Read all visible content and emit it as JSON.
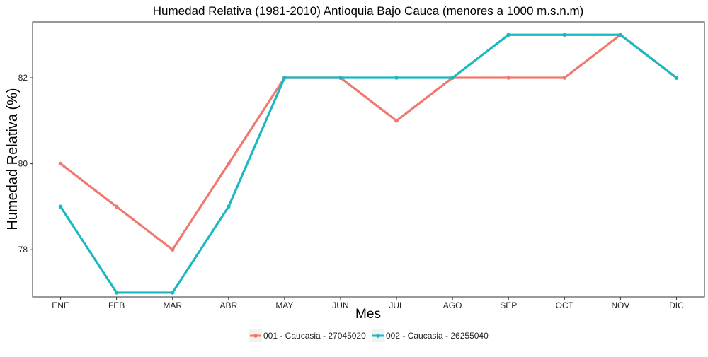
{
  "chart_data": {
    "type": "line",
    "title": "Humedad Relativa (1981-2010) Antioquia Bajo Cauca (menores a 1000 m.s.n.m)",
    "xlabel": "Mes",
    "ylabel": "Humedad Relativa (%)",
    "categories": [
      "ENE",
      "FEB",
      "MAR",
      "ABR",
      "MAY",
      "JUN",
      "JUL",
      "AGO",
      "SEP",
      "OCT",
      "NOV",
      "DIC"
    ],
    "ylim": [
      76.9,
      83.3
    ],
    "yticks": [
      78,
      80,
      82
    ],
    "grid": false,
    "legend_position": "bottom",
    "series": [
      {
        "name": "001 - Caucasia - 27045020",
        "color": "#F0796F",
        "values": [
          80,
          79,
          78,
          80,
          82,
          82,
          81,
          82,
          82,
          82,
          83,
          82
        ]
      },
      {
        "name": "002 - Caucasia - 26255040",
        "color": "#19B9C2",
        "values": [
          79,
          77,
          77,
          79,
          82,
          82,
          82,
          82,
          83,
          83,
          83,
          82
        ]
      }
    ]
  }
}
